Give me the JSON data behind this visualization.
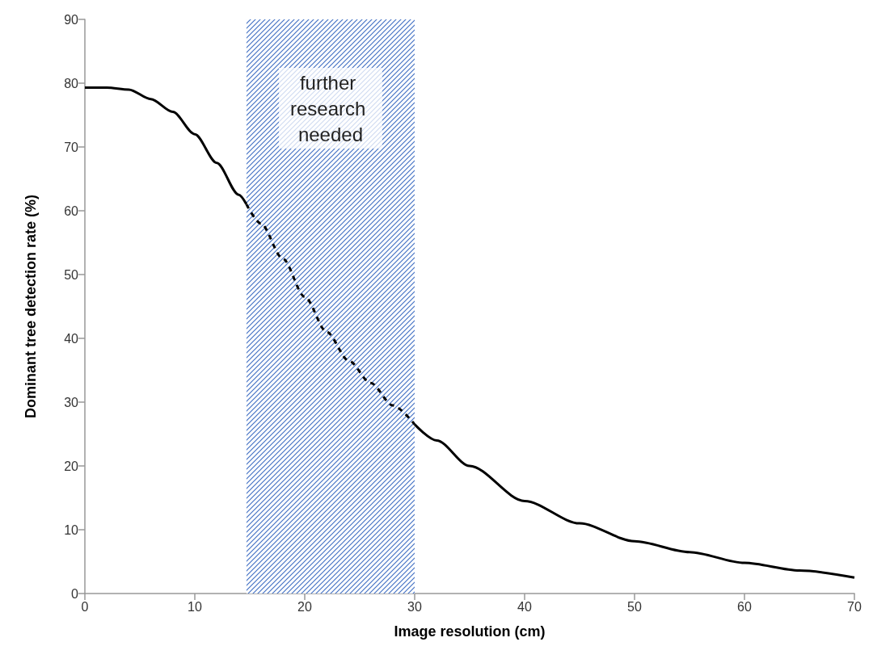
{
  "chart_data": {
    "type": "line",
    "xlabel": "Image resolution (cm)",
    "ylabel": "Dominant tree detection rate (%)",
    "xlim": [
      0,
      70
    ],
    "xticks": [
      0,
      10,
      20,
      30,
      40,
      50,
      60,
      70
    ],
    "ylim": [
      0,
      90
    ],
    "yticks": [
      0,
      10,
      20,
      30,
      40,
      50,
      60,
      70,
      80,
      90
    ],
    "grid": false,
    "marker": "none",
    "series": [
      {
        "color": "#000000",
        "line_style": "solid",
        "x": [
          0,
          2,
          4,
          6,
          8,
          10,
          12,
          14,
          14.7
        ],
        "values": [
          79.3,
          79.3,
          79,
          77.5,
          75.5,
          72,
          67.5,
          62.5,
          61
        ]
      },
      {
        "color": "#000000",
        "line_style": "dashed",
        "x": [
          14.7,
          16,
          18,
          20,
          22,
          24,
          26,
          28,
          30
        ],
        "values": [
          61,
          58,
          52.5,
          46.5,
          41,
          36.5,
          33,
          29.5,
          26.5
        ]
      },
      {
        "color": "#000000",
        "line_style": "solid",
        "x": [
          30,
          32,
          35,
          40,
          45,
          50,
          55,
          60,
          65,
          70
        ],
        "values": [
          26.5,
          24,
          20,
          14.5,
          11,
          8.2,
          6.5,
          4.8,
          3.6,
          2.5
        ]
      }
    ],
    "bands": [
      {
        "axis": "x",
        "from": 14.7,
        "to": 30,
        "label": "further research needed",
        "color": "#4472c4"
      }
    ]
  }
}
